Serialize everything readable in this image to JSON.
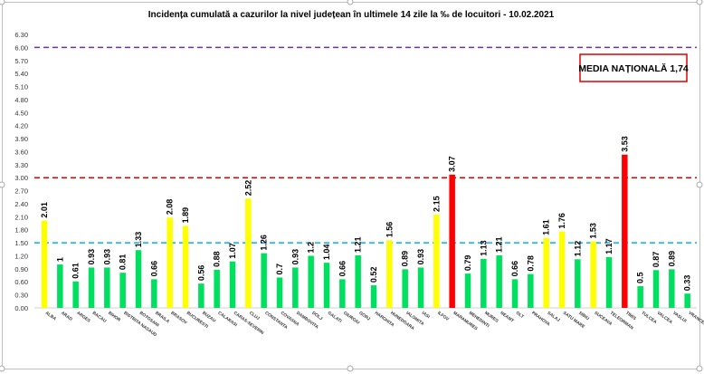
{
  "chart_data": {
    "type": "bar",
    "title": "Incidența cumulată a cazurilor la nivel județean în ultimele 14 zile la ‰ de locuitori - 10.02.2021",
    "ylim": [
      0,
      6.3
    ],
    "yticks": [
      "0.00",
      "0.30",
      "0.60",
      "0.90",
      "1.20",
      "1.50",
      "1.80",
      "2.10",
      "2.40",
      "2.70",
      "3.00",
      "3.30",
      "3.60",
      "3.90",
      "4.20",
      "4.50",
      "4.80",
      "5.10",
      "5.40",
      "5.70",
      "6.00",
      "6.30"
    ],
    "categories": [
      "ALBA",
      "ARAD",
      "ARGES",
      "BACAU",
      "BIHOR",
      "BISTRITA NASAUD",
      "BOTOSANI",
      "BRAILA",
      "BRASOV",
      "BUCURESTI",
      "BUZAU",
      "CALARASI",
      "CARAS-SEVERIN",
      "CLUJ",
      "CONSTANTA",
      "COVASNA",
      "DAMBOVITA",
      "DOLJ",
      "GALATI",
      "GIURGIU",
      "GORJ",
      "HARGHITA",
      "HUNEDOARA",
      "IALOMITA",
      "IASI",
      "ILFOV",
      "MARAMURES",
      "MEHEDINTI",
      "MURES",
      "NEAMT",
      "OLT",
      "PRAHOVA",
      "SALAJ",
      "SATU MARE",
      "SIBIU",
      "SUCEAVA",
      "TELEORMAN",
      "TIMIS",
      "TULCEA",
      "VALCEA",
      "VASLUI",
      "VRANCEA"
    ],
    "values": [
      2.01,
      1,
      0.61,
      0.93,
      0.93,
      0.81,
      1.33,
      0.66,
      2.08,
      1.89,
      0.56,
      0.88,
      1.07,
      2.52,
      1.26,
      0.7,
      0.93,
      1.2,
      1.04,
      0.66,
      1.21,
      0.52,
      1.56,
      0.89,
      0.93,
      2.15,
      3.07,
      0.79,
      1.13,
      1.21,
      0.66,
      0.78,
      1.61,
      1.76,
      1.12,
      1.53,
      1.17,
      3.53,
      0.5,
      0.87,
      0.89,
      0.33
    ],
    "value_labels": [
      "2.01",
      "1",
      "0.61",
      "0.93",
      "0.93",
      "0.81",
      "1.33",
      "0.66",
      "2.08",
      "1.89",
      "0.56",
      "0.88",
      "1.07",
      "2.52",
      "1.26",
      "0.7",
      "0.93",
      "1.2",
      "1.04",
      "0.66",
      "1.21",
      "0.52",
      "1.56",
      "0.89",
      "0.93",
      "2.15",
      "3.07",
      "0.79",
      "1.13",
      "1.21",
      "0.66",
      "0.78",
      "1.61",
      "1.76",
      "1.12",
      "1.53",
      "1.17",
      "3.53",
      "0.5",
      "0.87",
      "0.89",
      "0.33"
    ],
    "thresholds": [
      {
        "value": 6.0,
        "color": "#7030a0"
      },
      {
        "value": 3.0,
        "color": "#e00000"
      },
      {
        "value": 1.5,
        "color": "#00b0f0"
      }
    ],
    "colors": {
      "low": "#00e060",
      "mid": "#ffff00",
      "high": "#ff0000"
    },
    "grid": false
  },
  "annotation": {
    "text": "MEDIA NAȚIONALĂ 1,74",
    "color": "#e00000"
  }
}
